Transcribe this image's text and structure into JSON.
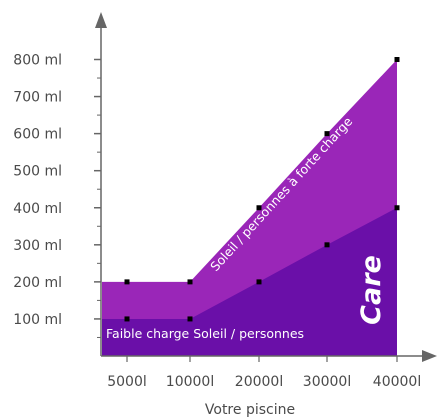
{
  "chart_data": {
    "type": "area",
    "x": [
      "5000l",
      "10000l",
      "20000l",
      "30000l",
      "40000l"
    ],
    "ylabel_ticks": [
      "100 ml",
      "200 ml",
      "300 ml",
      "400 ml",
      "500 ml",
      "600 ml",
      "700 ml",
      "800 ml"
    ],
    "ylim": [
      0,
      800
    ],
    "xlabel": "Votre piscine",
    "ylabel": "",
    "title": "",
    "grid": false,
    "series": [
      {
        "name": "Faible charge Soleil / personnes",
        "values": [
          100,
          100,
          200,
          300,
          400
        ],
        "color": "#6a0fa8"
      },
      {
        "name": "Soleil / personnes à forte charge",
        "values": [
          200,
          200,
          400,
          600,
          800
        ],
        "color": "#9a26b8"
      }
    ],
    "annotation": "Care"
  },
  "colors": {
    "upper_band": "#9a26b8",
    "lower_band": "#6a0fa8",
    "axis": "#666666",
    "marker": "#000000"
  }
}
